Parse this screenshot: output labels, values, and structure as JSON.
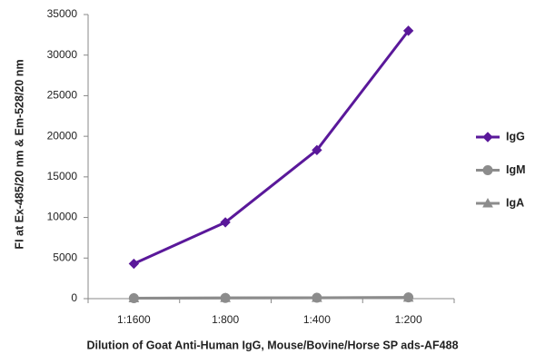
{
  "chart_data": {
    "type": "line",
    "x_label": "Dilution of Goat Anti-Human IgG, Mouse/Bovine/Horse SP ads-AF488",
    "y_label": "FI at Ex-485/20 nm & Em-528/20 nm",
    "categories": [
      "1:1600",
      "1:800",
      "1:400",
      "1:200"
    ],
    "series": [
      {
        "name": "IgG",
        "color": "#5a189a",
        "marker": "diamond",
        "values": [
          4300,
          9400,
          18300,
          33000
        ]
      },
      {
        "name": "IgM",
        "color": "#8c8c8c",
        "marker": "circle",
        "values": [
          60,
          90,
          110,
          150
        ]
      },
      {
        "name": "IgA",
        "color": "#8c8c8c",
        "marker": "triangle",
        "values": [
          50,
          80,
          100,
          130
        ]
      }
    ],
    "ylim": [
      0,
      35000
    ],
    "yticks": [
      0,
      5000,
      10000,
      15000,
      20000,
      25000,
      30000,
      35000
    ],
    "grid": false,
    "legend": "right"
  }
}
